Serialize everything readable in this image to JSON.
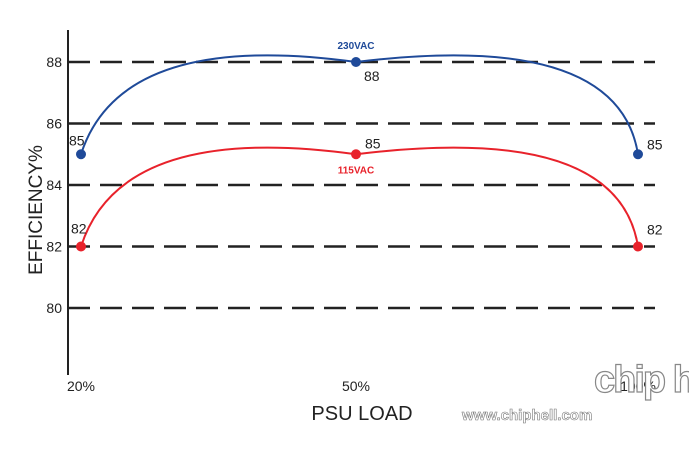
{
  "chart_data": {
    "type": "line",
    "xlabel": "PSU LOAD",
    "ylabel": "EFFICIENCY%",
    "categories": [
      "20%",
      "50%",
      "100%"
    ],
    "x_positions_units": [
      20,
      50,
      100
    ],
    "yticks": [
      80,
      82,
      84,
      86,
      88
    ],
    "ylim": [
      78,
      89.5
    ],
    "grid": "horizontal dashed",
    "series": [
      {
        "name": "230VAC",
        "color": "#1f4a99",
        "values": [
          85,
          88,
          85
        ]
      },
      {
        "name": "115VAC",
        "color": "#e8222b",
        "values": [
          82,
          85,
          82
        ]
      }
    ],
    "data_labels": {
      "230VAC": [
        "85",
        "88",
        "85"
      ],
      "115VAC": [
        "82",
        "85",
        "82"
      ]
    }
  },
  "watermark": {
    "site": "www.chiphell.com",
    "logo_text": "chip hell"
  }
}
